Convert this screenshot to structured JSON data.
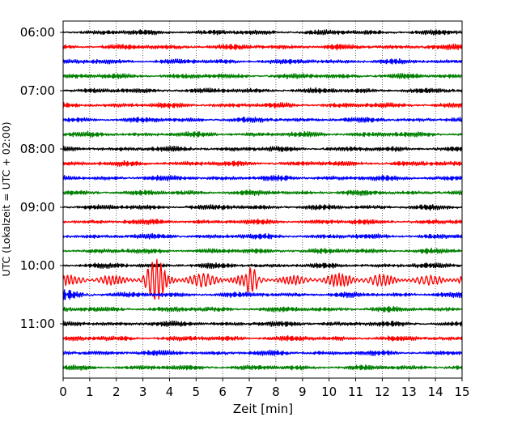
{
  "chart_data": {
    "type": "line",
    "xlabel": "Zeit  [min]",
    "ylabel": "UTC (Lokalzeit = UTC + 02:00)",
    "xlim": [
      0,
      15
    ],
    "x_ticks": [
      "0",
      "1",
      "2",
      "3",
      "4",
      "5",
      "6",
      "7",
      "8",
      "9",
      "10",
      "11",
      "12",
      "13",
      "14",
      "15"
    ],
    "y_ticks": [
      "06:00",
      "07:00",
      "08:00",
      "09:00",
      "10:00",
      "11:00"
    ],
    "trace_start_hour": "06:00",
    "trace_interval_minutes": 15,
    "trace_count": 24,
    "color_cycle": [
      "#000000",
      "#ff0000",
      "#0000ff",
      "#008000"
    ],
    "grid": "vertical dotted",
    "event": {
      "description_visible": false,
      "trace_index": 17,
      "start_min": 0.0,
      "peak_min": [
        3.0,
        4.0
      ],
      "end_min": 15
    }
  }
}
